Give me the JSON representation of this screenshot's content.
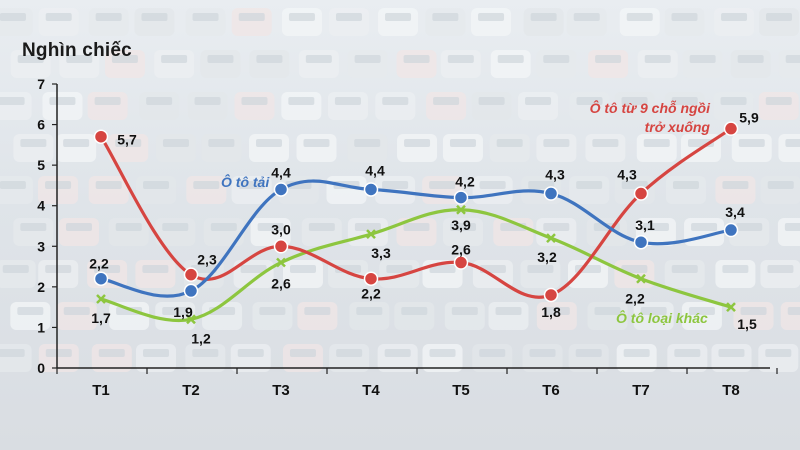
{
  "chart_data": {
    "type": "line",
    "title": "",
    "ylabel": "Nghìn chiếc",
    "xlabel": "",
    "categories": [
      "T1",
      "T2",
      "T3",
      "T4",
      "T5",
      "T6",
      "T7",
      "T8"
    ],
    "ylim": [
      0,
      7
    ],
    "yticks": [
      0,
      1,
      2,
      3,
      4,
      5,
      6,
      7
    ],
    "grid": false,
    "legend": "inline labels next to lines",
    "series": [
      {
        "name": "Ô tô tải",
        "color": "#3f74bf",
        "marker": "circle",
        "values": [
          2.2,
          1.9,
          4.4,
          4.4,
          4.2,
          4.3,
          3.1,
          3.4
        ],
        "labels": [
          "2,2",
          "1,9",
          "4,4",
          "4,4",
          "4,2",
          "4,3",
          "3,1",
          "3,4"
        ]
      },
      {
        "name": "Ô tô từ 9 chỗ ngồi trở xuống",
        "name_lines": [
          "Ô tô từ 9 chỗ ngồi",
          "trở xuống"
        ],
        "color": "#d64541",
        "marker": "circle",
        "values": [
          5.7,
          2.3,
          3.0,
          2.2,
          2.6,
          1.8,
          4.3,
          5.9
        ],
        "labels": [
          "5,7",
          "2,3",
          "3,0",
          "2,2",
          "2,6",
          "1,8",
          "4,3",
          "5,9"
        ]
      },
      {
        "name": "Ô tô loại khác",
        "color": "#8dc63f",
        "marker": "x",
        "values": [
          1.7,
          1.2,
          2.6,
          3.3,
          3.9,
          3.2,
          2.2,
          1.5
        ],
        "labels": [
          "1,7",
          "1,2",
          "2,6",
          "3,3",
          "3,9",
          "3,2",
          "2,2",
          "1,5"
        ]
      }
    ]
  }
}
